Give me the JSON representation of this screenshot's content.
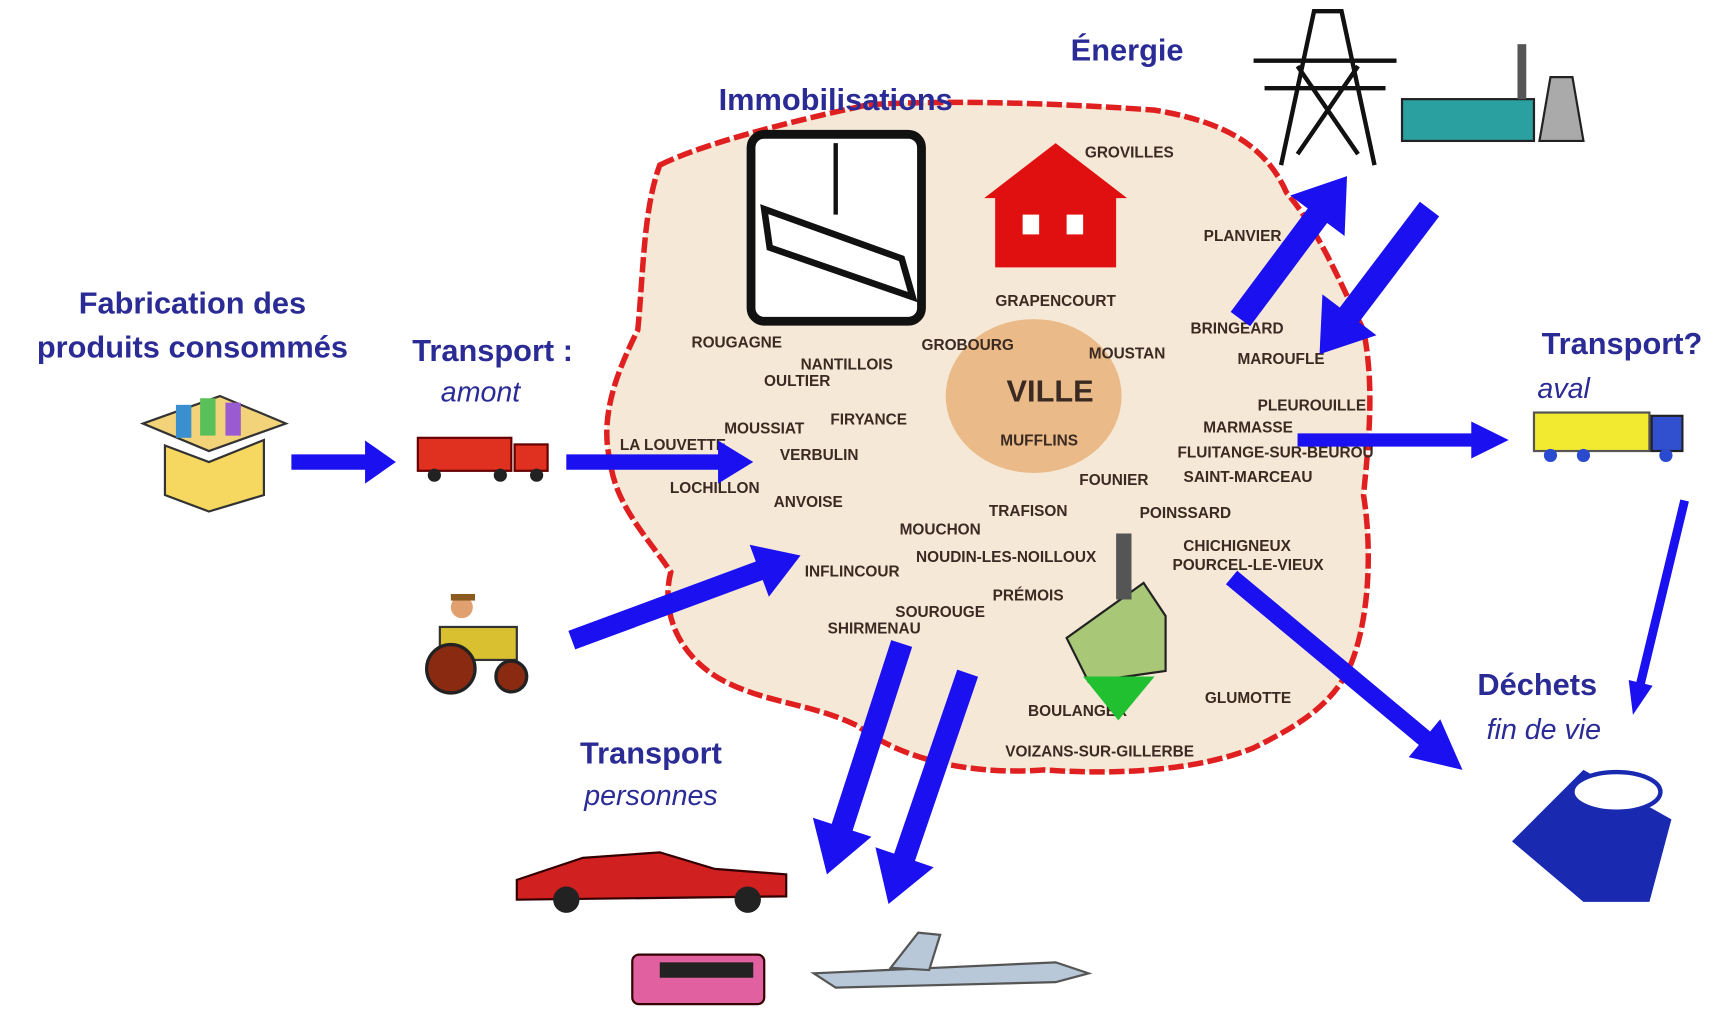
{
  "energy": {
    "title": "Énergie"
  },
  "fixed_assets": {
    "title": "Immobilisations"
  },
  "manufacturing": {
    "lines": [
      "Fabrication des",
      "produits consommés"
    ]
  },
  "upstream": {
    "title": "Transport :",
    "subtitle": "amont"
  },
  "downstream": {
    "title": "Transport?",
    "subtitle": "aval"
  },
  "waste": {
    "title": "Déchets",
    "subtitle": "fin de vie"
  },
  "people": {
    "title": "Transport",
    "subtitle": "personnes"
  },
  "map": {
    "center": "VILLE",
    "towns": [
      "MUFFLINS",
      "GROBOURG",
      "MOUSTAN",
      "GRAPENCOURT",
      "VERBULIN",
      "ANVOISE",
      "MOUCHON",
      "FOUNIER",
      "TRAFISON",
      "POINSSARD",
      "CHICHIGNEUX",
      "POURCEL-LE-VIEUX",
      "GLUMOTTE",
      "BOULANGER",
      "SOUROUGE",
      "SHIRMENAU",
      "PRÉMOIS",
      "MARMASSE",
      "FLUITANGE-SUR-BEUROU",
      "SAINT-MARCEAU",
      "MAROUFLE",
      "BRINGEARD",
      "PLANVIER",
      "ROUGAGNE",
      "LA LOUVETTE",
      "LOCHILLON",
      "GROVILLES",
      "VOIZANS-SUR-GILLERBE",
      "INFLINCOUR",
      "PLEUROUILLE",
      "NOUDIN-LES-NOILLOUX",
      "MOUSSIAT",
      "FIRYANCE",
      "OULTIER",
      "NANTILLOIS"
    ]
  }
}
